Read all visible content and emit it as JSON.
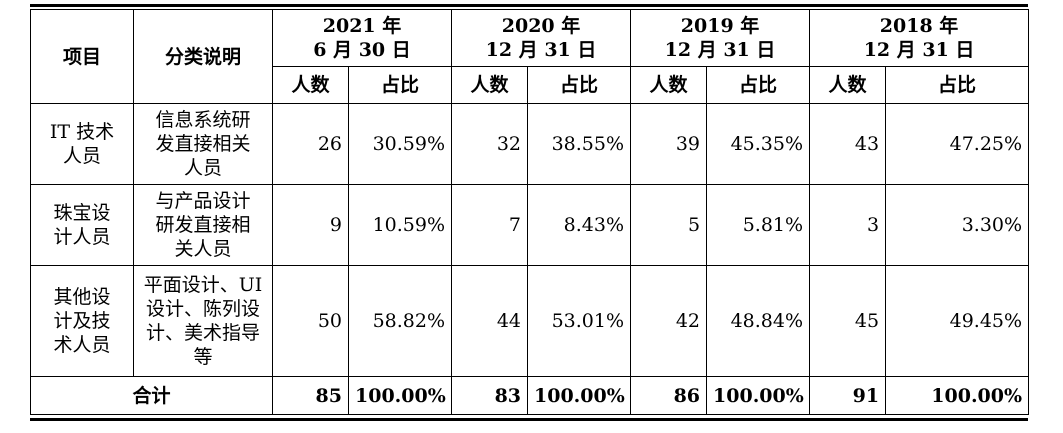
{
  "headers": {
    "item": "项目",
    "category": "分类说明",
    "periods": [
      {
        "year": "2021 年",
        "date": "6 月 30 日"
      },
      {
        "year": "2020 年",
        "date": "12 月 31 日"
      },
      {
        "year": "2019 年",
        "date": "12 月 31 日"
      },
      {
        "year": "2018 年",
        "date": "12 月 31 日"
      }
    ],
    "count": "人数",
    "ratio": "占比"
  },
  "rows": [
    {
      "item": [
        "IT 技术",
        "人员"
      ],
      "category": [
        "信息系统研",
        "发直接相关",
        "人员"
      ],
      "values": [
        {
          "count": "26",
          "ratio": "30.59%"
        },
        {
          "count": "32",
          "ratio": "38.55%"
        },
        {
          "count": "39",
          "ratio": "45.35%"
        },
        {
          "count": "43",
          "ratio": "47.25%"
        }
      ]
    },
    {
      "item": [
        "珠宝设",
        "计人员"
      ],
      "category": [
        "与产品设计",
        "研发直接相",
        "关人员"
      ],
      "values": [
        {
          "count": "9",
          "ratio": "10.59%"
        },
        {
          "count": "7",
          "ratio": "8.43%"
        },
        {
          "count": "5",
          "ratio": "5.81%"
        },
        {
          "count": "3",
          "ratio": "3.30%"
        }
      ]
    },
    {
      "item": [
        "其他设",
        "计及技",
        "术人员"
      ],
      "category": [
        "平面设计、UI",
        "设计、陈列设",
        "计、美术指导",
        "等"
      ],
      "values": [
        {
          "count": "50",
          "ratio": "58.82%"
        },
        {
          "count": "44",
          "ratio": "53.01%"
        },
        {
          "count": "42",
          "ratio": "48.84%"
        },
        {
          "count": "45",
          "ratio": "49.45%"
        }
      ]
    }
  ],
  "total": {
    "label": "合计",
    "values": [
      {
        "count": "85",
        "ratio": "100.00%"
      },
      {
        "count": "83",
        "ratio": "100.00%"
      },
      {
        "count": "86",
        "ratio": "100.00%"
      },
      {
        "count": "91",
        "ratio": "100.00%"
      }
    ]
  }
}
